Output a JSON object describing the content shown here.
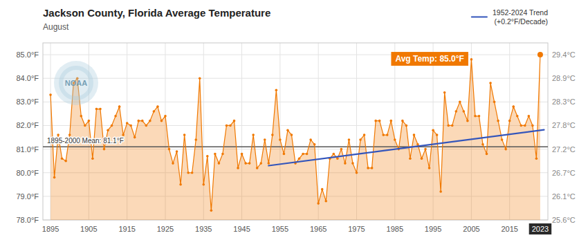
{
  "chart_data": {
    "type": "line",
    "title": "Jackson County, Florida Average Temperature",
    "subtitle": "August",
    "x": [
      1895,
      1896,
      1897,
      1898,
      1899,
      1900,
      1901,
      1902,
      1903,
      1904,
      1905,
      1906,
      1907,
      1908,
      1909,
      1910,
      1911,
      1912,
      1913,
      1914,
      1915,
      1916,
      1917,
      1918,
      1919,
      1920,
      1921,
      1922,
      1923,
      1924,
      1925,
      1926,
      1927,
      1928,
      1929,
      1930,
      1931,
      1932,
      1933,
      1934,
      1935,
      1936,
      1937,
      1938,
      1939,
      1940,
      1941,
      1942,
      1943,
      1944,
      1945,
      1946,
      1947,
      1948,
      1949,
      1950,
      1951,
      1952,
      1953,
      1954,
      1955,
      1956,
      1957,
      1958,
      1959,
      1960,
      1961,
      1962,
      1963,
      1964,
      1965,
      1966,
      1967,
      1968,
      1969,
      1970,
      1971,
      1972,
      1973,
      1974,
      1975,
      1976,
      1977,
      1978,
      1979,
      1980,
      1981,
      1982,
      1983,
      1984,
      1985,
      1986,
      1987,
      1988,
      1989,
      1990,
      1991,
      1992,
      1993,
      1994,
      1995,
      1996,
      1997,
      1998,
      1999,
      2000,
      2001,
      2002,
      2003,
      2004,
      2005,
      2006,
      2007,
      2008,
      2009,
      2010,
      2011,
      2012,
      2013,
      2014,
      2015,
      2016,
      2017,
      2018,
      2019,
      2020,
      2021,
      2022,
      2023
    ],
    "xlim": [
      1893,
      2025
    ],
    "xticks": [
      1895,
      1905,
      1915,
      1925,
      1935,
      1945,
      1955,
      1965,
      1975,
      1985,
      1995,
      2005,
      2015
    ],
    "ylim": [
      78.0,
      85.5
    ],
    "yticks": [
      {
        "value": 78.0,
        "label": "78.0°F"
      },
      {
        "value": 79.0,
        "label": "79.0°F"
      },
      {
        "value": 80.0,
        "label": "80.0°F"
      },
      {
        "value": 81.0,
        "label": "81.0°F"
      },
      {
        "value": 82.0,
        "label": "82.0°F"
      },
      {
        "value": 83.0,
        "label": "83.0°F"
      },
      {
        "value": 84.0,
        "label": "84.0°F"
      },
      {
        "value": 85.0,
        "label": "85.0°F"
      }
    ],
    "y2lim": [
      78.0,
      85.5
    ],
    "y2ticks": [
      {
        "value": 78.0,
        "label": "25.6°C"
      },
      {
        "value": 79.0,
        "label": "26.1°C"
      },
      {
        "value": 80.0,
        "label": "26.7°C"
      },
      {
        "value": 81.0,
        "label": "27.2°C"
      },
      {
        "value": 82.0,
        "label": "27.8°C"
      },
      {
        "value": 83.0,
        "label": "28.3°C"
      },
      {
        "value": 84.0,
        "label": "28.9°C"
      },
      {
        "value": 85.0,
        "label": "29.4°C"
      }
    ],
    "grid": true,
    "legend": "upper right",
    "series": [
      {
        "type": "area",
        "color": "#f07800",
        "marker": "circle",
        "values": [
          83.3,
          79.8,
          81.6,
          80.6,
          80.5,
          81.6,
          83.8,
          84.0,
          82.4,
          82.0,
          82.2,
          80.6,
          82.7,
          82.7,
          81.0,
          81.8,
          82.0,
          82.4,
          82.8,
          81.6,
          82.1,
          82.0,
          81.5,
          82.2,
          82.2,
          82.0,
          82.2,
          82.6,
          82.8,
          82.2,
          82.4,
          81.0,
          80.4,
          80.9,
          79.5,
          81.6,
          80.0,
          80.0,
          81.4,
          84.0,
          79.5,
          80.7,
          78.4,
          80.8,
          80.4,
          80.8,
          82.0,
          82.0,
          82.2,
          80.2,
          80.8,
          80.4,
          80.4,
          81.6,
          80.2,
          80.4,
          81.4,
          80.4,
          81.6,
          83.5,
          81.4,
          80.8,
          81.8,
          81.6,
          80.4,
          80.6,
          80.8,
          80.8,
          81.4,
          81.2,
          78.7,
          79.3,
          78.8,
          80.6,
          80.8,
          80.6,
          81.0,
          80.4,
          81.4,
          80.4,
          80.0,
          81.4,
          81.6,
          80.2,
          80.2,
          82.2,
          82.2,
          81.6,
          81.6,
          82.2,
          81.4,
          81.0,
          82.2,
          82.0,
          80.6,
          81.6,
          81.2,
          80.6,
          81.0,
          80.2,
          81.8,
          81.6,
          79.2,
          83.4,
          82.0,
          82.0,
          82.6,
          83.0,
          82.6,
          82.2,
          84.8,
          82.4,
          82.4,
          81.2,
          80.8,
          83.8,
          83.0,
          82.2,
          81.4,
          81.0,
          82.2,
          82.8,
          82.4,
          82.0,
          82.0,
          82.4,
          82.0,
          80.6,
          85.0
        ]
      },
      {
        "name": "1952-2024 Trend\n(+0.2°F/Decade)",
        "type": "line",
        "color": "#3355bb",
        "x": [
          1952,
          2024
        ],
        "values": [
          80.3,
          81.82
        ]
      }
    ],
    "mean_line": {
      "value": 81.1,
      "label": "1895-2000 Mean: 81.1°F",
      "color": "#555555"
    },
    "highlight": {
      "x": 2023,
      "value": 85.0,
      "label": "Avg Temp: 85.0°F",
      "color": "#f07800"
    },
    "watermark": "NOAA"
  }
}
